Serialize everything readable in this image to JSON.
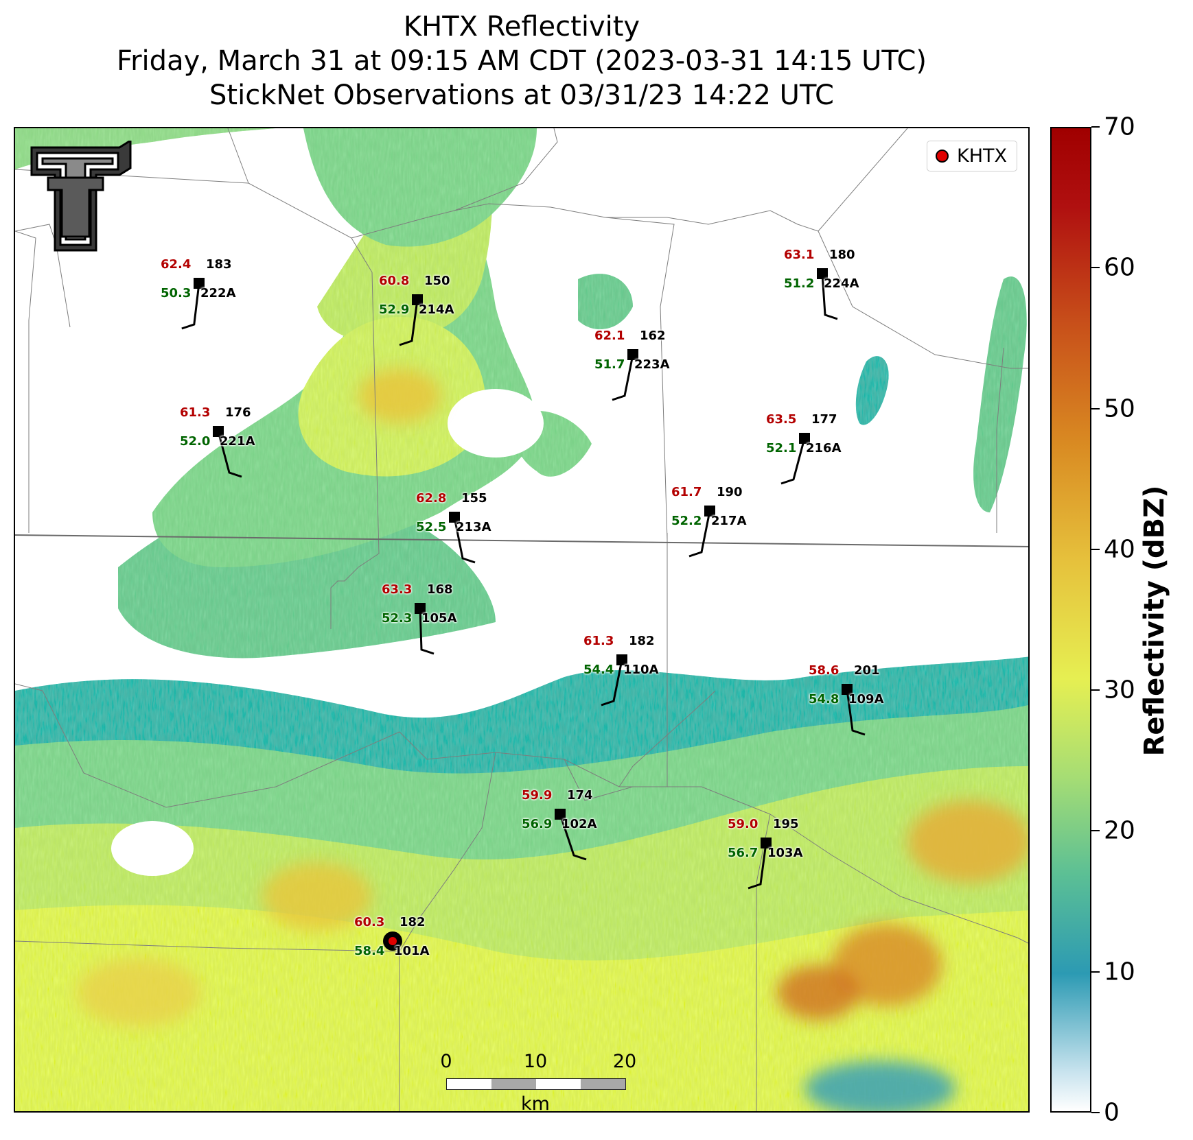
{
  "title": {
    "line1": "KHTX Reflectivity",
    "line2": "Friday, March 31 at 09:15 AM CDT (2023-03-31 14:15 UTC)",
    "line3": "StickNet Observations at 03/31/23 14:22 UTC"
  },
  "legend": {
    "label": "KHTX",
    "marker_color": "#e00000"
  },
  "colorbar": {
    "label": "Reflectivity (dBZ)",
    "ticks": [
      "0",
      "10",
      "20",
      "30",
      "40",
      "50",
      "60",
      "70"
    ],
    "min": 0,
    "max": 70
  },
  "scalebar": {
    "ticks": [
      "0",
      "10",
      "20"
    ],
    "unit": "km"
  },
  "stations": [
    {
      "id": "222A",
      "temp": "62.4",
      "dew": "50.3",
      "dir": "183"
    },
    {
      "id": "214A",
      "temp": "60.8",
      "dew": "52.9",
      "dir": "150"
    },
    {
      "id": "224A",
      "temp": "63.1",
      "dew": "51.2",
      "dir": "180"
    },
    {
      "id": "223A",
      "temp": "62.1",
      "dew": "51.7",
      "dir": "162"
    },
    {
      "id": "216A",
      "temp": "63.5",
      "dew": "52.1",
      "dir": "177"
    },
    {
      "id": "221A",
      "temp": "61.3",
      "dew": "52.0",
      "dir": "176"
    },
    {
      "id": "213A",
      "temp": "62.8",
      "dew": "52.5",
      "dir": "155"
    },
    {
      "id": "217A",
      "temp": "61.7",
      "dew": "52.2",
      "dir": "190"
    },
    {
      "id": "105A",
      "temp": "63.3",
      "dew": "52.3",
      "dir": "168"
    },
    {
      "id": "110A",
      "temp": "61.3",
      "dew": "54.4",
      "dir": "182"
    },
    {
      "id": "109A",
      "temp": "58.6",
      "dew": "54.8",
      "dir": "201"
    },
    {
      "id": "102A",
      "temp": "59.9",
      "dew": "56.9",
      "dir": "174"
    },
    {
      "id": "103A",
      "temp": "59.0",
      "dew": "56.7",
      "dir": "195"
    },
    {
      "id": "101A",
      "temp": "60.3",
      "dew": "58.4",
      "dir": "182"
    }
  ]
}
